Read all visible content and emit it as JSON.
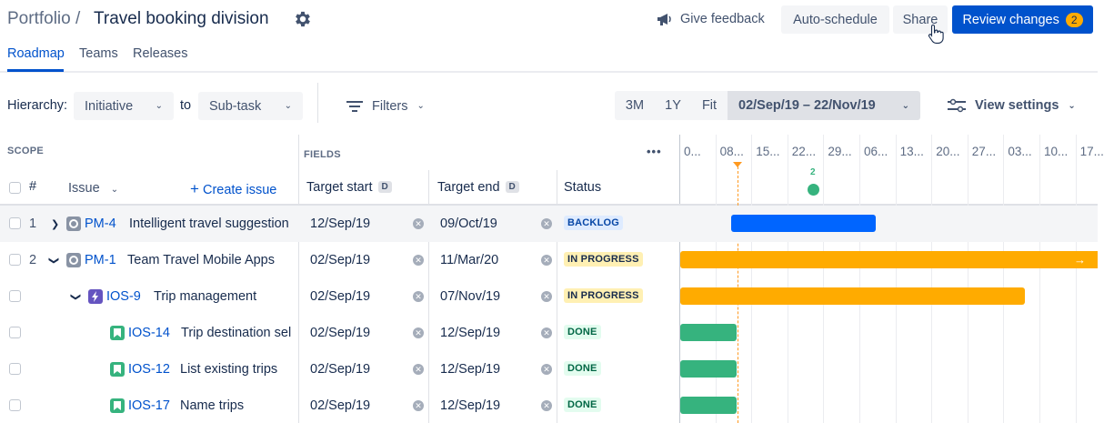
{
  "header": {
    "portfolio": "Portfolio /",
    "title": "Travel booking division",
    "feedback_label": "Give feedback",
    "autoschedule_label": "Auto-schedule",
    "share_label": "Share",
    "review_label": "Review changes",
    "review_count": "2"
  },
  "tabs": [
    {
      "label": "Roadmap"
    },
    {
      "label": "Teams"
    },
    {
      "label": "Releases"
    }
  ],
  "toolbar": {
    "hierarchy_label": "Hierarchy:",
    "from_value": "Initiative",
    "to_label": "to",
    "to_value": "Sub-task",
    "filters_label": "Filters",
    "zoom_options": [
      "3M",
      "1Y",
      "Fit"
    ],
    "date_range": "02/Sep/19 – 22/Nov/19",
    "view_settings_label": "View settings"
  },
  "table": {
    "scope_label": "SCOPE",
    "fields_label": "FIELDS",
    "more_label": "•••",
    "col_num": "#",
    "col_issue": "Issue",
    "create_issue_label": "Create issue",
    "col_target_start": "Target start",
    "col_target_end": "Target end",
    "col_status": "Status",
    "date_badge": "D",
    "rows": [
      {
        "num": "1",
        "key": "PM-4",
        "summary": "Intelligent travel suggestion",
        "target_start": "12/Sep/19",
        "target_end": "09/Oct/19",
        "status": "BACKLOG"
      },
      {
        "num": "2",
        "key": "PM-1",
        "summary": "Team Travel Mobile Apps",
        "target_start": "02/Sep/19",
        "target_end": "11/Mar/20",
        "status": "IN PROGRESS"
      },
      {
        "num": "",
        "key": "IOS-9",
        "summary": "Trip management",
        "target_start": "02/Sep/19",
        "target_end": "07/Nov/19",
        "status": "IN PROGRESS"
      },
      {
        "num": "",
        "key": "IOS-14",
        "summary": "Trip destination sel",
        "target_start": "02/Sep/19",
        "target_end": "12/Sep/19",
        "status": "DONE"
      },
      {
        "num": "",
        "key": "IOS-12",
        "summary": "List existing trips",
        "target_start": "02/Sep/19",
        "target_end": "12/Sep/19",
        "status": "DONE"
      },
      {
        "num": "",
        "key": "IOS-17",
        "summary": "Name trips",
        "target_start": "02/Sep/19",
        "target_end": "12/Sep/19",
        "status": "DONE"
      }
    ]
  },
  "timeline": {
    "labels": [
      "0...",
      "08...",
      "15...",
      "22...",
      "29...",
      "06...",
      "13...",
      "20...",
      "27...",
      "03...",
      "10...",
      "17..."
    ],
    "release_marker_count": "2"
  },
  "colors": {
    "brand": "#0052cc",
    "in_progress": "#ffab00",
    "done": "#36b37e",
    "today_line": "#ff991f"
  }
}
